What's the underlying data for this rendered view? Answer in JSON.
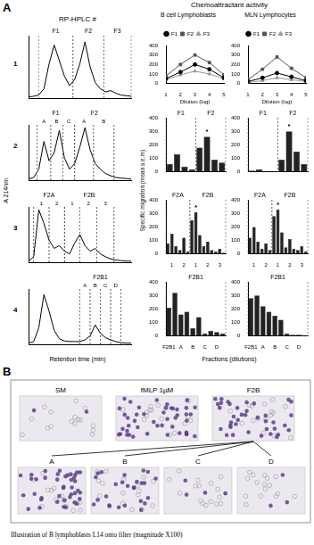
{
  "figure": {
    "panel_a": "A",
    "hplc_head": "RP-HPLC #",
    "activity_head": "Chemoattractant activity",
    "bcell_head": "B cell Lymphoblasts",
    "mln_head": "MLN Lymphocytes",
    "row_labels": [
      "1",
      "2",
      "3",
      "4"
    ],
    "y_title_left": "A 214nm",
    "y_title_mid": "Specific migration (mean s.e.m)",
    "x_title_left": "Retention time (min)",
    "x_title_right": "Fractions (dilutions)"
  },
  "chart_data": [
    {
      "type": "line",
      "x": [
        0,
        3,
        6,
        9,
        12,
        15,
        18,
        21,
        24,
        27,
        30,
        33,
        36,
        39,
        42,
        45,
        48,
        51,
        54,
        57,
        60
      ],
      "values": [
        0.02,
        0.03,
        0.05,
        0.15,
        0.55,
        0.85,
        0.6,
        0.35,
        0.2,
        0.3,
        0.55,
        0.9,
        0.5,
        0.25,
        0.15,
        0.1,
        0.12,
        0.08,
        0.05,
        0.04,
        0.03
      ],
      "color": "#000000",
      "xlim": [
        0,
        60
      ],
      "ylim": [
        0,
        1
      ],
      "tick_labels": false,
      "annotations": [
        {
          "text": "F1",
          "from": 6,
          "to": 26
        },
        {
          "text": "F2",
          "from": 26,
          "to": 44
        },
        {
          "text": "F3",
          "from": 44,
          "to": 60
        }
      ]
    },
    {
      "type": "line",
      "xlabel": "Dilution (log)",
      "x": [
        1,
        2,
        3,
        4,
        5
      ],
      "xlim": [
        1,
        5
      ],
      "xticks": [
        1,
        2,
        3,
        4,
        5
      ],
      "ylim": [
        0,
        400
      ],
      "yticks": [
        0,
        100,
        200,
        300,
        400
      ],
      "legend": "top",
      "series": [
        {
          "name": "F1",
          "color": "#000000",
          "marker": "circle",
          "values": [
            50,
            120,
            200,
            150,
            60
          ]
        },
        {
          "name": "F2",
          "color": "#555555",
          "marker": "square",
          "values": [
            80,
            200,
            300,
            220,
            90
          ]
        },
        {
          "name": "F3",
          "color": "#999999",
          "marker": "triangle",
          "values": [
            40,
            90,
            130,
            100,
            50
          ]
        }
      ]
    },
    {
      "type": "line",
      "xlabel": "Dilution (log)",
      "x": [
        1,
        2,
        3,
        4,
        5
      ],
      "xlim": [
        1,
        5
      ],
      "xticks": [
        1,
        2,
        3,
        4,
        5
      ],
      "ylim": [
        0,
        400
      ],
      "yticks": [
        0,
        100,
        200,
        300,
        400
      ],
      "legend": "top",
      "series": [
        {
          "name": "F1",
          "color": "#000000",
          "marker": "circle",
          "values": [
            20,
            60,
            110,
            70,
            30
          ]
        },
        {
          "name": "F2",
          "color": "#555555",
          "marker": "square",
          "values": [
            40,
            150,
            280,
            160,
            60
          ]
        },
        {
          "name": "F3",
          "color": "#999999",
          "marker": "triangle",
          "values": [
            10,
            30,
            60,
            40,
            20
          ]
        }
      ]
    },
    {
      "type": "line",
      "x": [
        0,
        3,
        6,
        9,
        12,
        15,
        18,
        21,
        24,
        27,
        30,
        33,
        36,
        39,
        42,
        45,
        48,
        51,
        54,
        57,
        60
      ],
      "values": [
        0.02,
        0.05,
        0.2,
        0.7,
        0.35,
        0.5,
        0.9,
        0.4,
        0.2,
        0.3,
        0.6,
        0.95,
        0.55,
        0.3,
        0.2,
        0.12,
        0.08,
        0.05,
        0.04,
        0.03,
        0.02
      ],
      "color": "#000000",
      "xlim": [
        0,
        60
      ],
      "ylim": [
        0,
        1
      ],
      "tick_labels": false,
      "annotations": [
        {
          "text": "F1",
          "from": 5,
          "to": 27,
          "sub": [
            {
              "text": "A",
              "from": 5,
              "to": 13
            },
            {
              "text": "B",
              "from": 13,
              "to": 20
            },
            {
              "text": "C",
              "from": 20,
              "to": 27
            }
          ]
        },
        {
          "text": "F2",
          "from": 27,
          "to": 50,
          "sub": [
            {
              "text": "A",
              "from": 27,
              "to": 38
            },
            {
              "text": "B",
              "from": 38,
              "to": 50
            }
          ]
        }
      ]
    },
    {
      "type": "bar",
      "categories": [
        null,
        null,
        null,
        null,
        null,
        null,
        null,
        null
      ],
      "values": [
        60,
        130,
        40,
        20,
        180,
        260,
        90,
        70
      ],
      "color": "#222222",
      "ylim": [
        0,
        400
      ],
      "yticks": [
        0,
        100,
        200,
        300,
        400
      ],
      "annotations": [
        {
          "text": "F1",
          "from": 0,
          "to": 3
        },
        {
          "text": "F2",
          "from": 4,
          "to": 7
        },
        {
          "text": "*",
          "at": 5
        }
      ]
    },
    {
      "type": "bar",
      "categories": [
        null,
        null,
        null,
        null,
        null,
        null,
        null,
        null
      ],
      "values": [
        10,
        20,
        5,
        0,
        90,
        300,
        150,
        60
      ],
      "color": "#222222",
      "ylim": [
        0,
        400
      ],
      "yticks": [
        0,
        100,
        200,
        300,
        400
      ],
      "annotations": [
        {
          "text": "F1",
          "from": 0,
          "to": 3
        },
        {
          "text": "F2",
          "from": 4,
          "to": 7
        },
        {
          "text": "*",
          "at": 5
        }
      ]
    },
    {
      "type": "line",
      "x": [
        0,
        3,
        6,
        9,
        12,
        15,
        18,
        21,
        24,
        27,
        30,
        33,
        36,
        39,
        42,
        45,
        48,
        51,
        54,
        57,
        60
      ],
      "values": [
        0.02,
        0.1,
        0.95,
        0.7,
        0.4,
        0.25,
        0.3,
        0.2,
        0.15,
        0.35,
        0.5,
        0.3,
        0.2,
        0.25,
        0.15,
        0.1,
        0.06,
        0.04,
        0.03,
        0.02,
        0.02
      ],
      "color": "#000000",
      "xlim": [
        0,
        60
      ],
      "ylim": [
        0,
        1
      ],
      "tick_labels": false,
      "annotations": [
        {
          "text": "F2A",
          "from": 3,
          "to": 21,
          "sub": [
            {
              "text": "1",
              "from": 3,
              "to": 12
            },
            {
              "text": "2",
              "from": 12,
              "to": 21
            }
          ]
        },
        {
          "text": "F2B",
          "from": 21,
          "to": 50,
          "sub": [
            {
              "text": "1",
              "from": 21,
              "to": 30
            },
            {
              "text": "2",
              "from": 30,
              "to": 40
            },
            {
              "text": "3",
              "from": 40,
              "to": 50
            }
          ]
        }
      ]
    },
    {
      "type": "bar",
      "categories": [
        null,
        "1",
        null,
        null,
        "2",
        null,
        null,
        "1",
        null,
        null,
        "2",
        null,
        null,
        "3",
        null
      ],
      "values": [
        80,
        150,
        60,
        30,
        120,
        20,
        250,
        310,
        140,
        60,
        90,
        30,
        20,
        40,
        10
      ],
      "color": "#222222",
      "ylim": [
        0,
        400
      ],
      "yticks": [
        0,
        100,
        200,
        300,
        400
      ],
      "annotations": [
        {
          "text": "F2A",
          "from": 0,
          "to": 5
        },
        {
          "text": "F2B",
          "from": 6,
          "to": 14
        },
        {
          "text": "*",
          "at": 7
        }
      ]
    },
    {
      "type": "bar",
      "categories": [
        null,
        "1",
        null,
        null,
        "2",
        null,
        null,
        "1",
        null,
        null,
        "2",
        null,
        null,
        "3",
        null
      ],
      "values": [
        120,
        200,
        90,
        40,
        80,
        30,
        280,
        330,
        160,
        50,
        110,
        40,
        30,
        60,
        20
      ],
      "color": "#222222",
      "ylim": [
        0,
        400
      ],
      "yticks": [
        0,
        100,
        200,
        300,
        400
      ],
      "annotations": [
        {
          "text": "F2A",
          "from": 0,
          "to": 5
        },
        {
          "text": "F2B",
          "from": 6,
          "to": 14
        },
        {
          "text": "*",
          "at": 7
        }
      ]
    },
    {
      "type": "line",
      "x": [
        0,
        3,
        6,
        9,
        12,
        15,
        18,
        21,
        24,
        27,
        30,
        33,
        36,
        39,
        42,
        45,
        48,
        51,
        54,
        57,
        60
      ],
      "values": [
        0.02,
        0.05,
        0.3,
        0.9,
        0.6,
        0.25,
        0.1,
        0.06,
        0.05,
        0.05,
        0.05,
        0.08,
        0.15,
        0.35,
        0.2,
        0.12,
        0.08,
        0.05,
        0.03,
        0.02,
        0.02
      ],
      "color": "#000000",
      "xlim": [
        0,
        60
      ],
      "ylim": [
        0,
        1
      ],
      "tick_labels": false,
      "annotations": [
        {
          "text": "F2B1",
          "from": 30,
          "to": 54,
          "sub": [
            {
              "text": "A",
              "from": 30,
              "to": 36
            },
            {
              "text": "B",
              "from": 36,
              "to": 42
            },
            {
              "text": "C",
              "from": 42,
              "to": 48
            },
            {
              "text": "D",
              "from": 48,
              "to": 54
            }
          ]
        }
      ]
    },
    {
      "type": "bar",
      "categories": [
        "F2B1",
        null,
        "A",
        null,
        "B",
        null,
        "C",
        null,
        "D",
        null
      ],
      "values": [
        210,
        320,
        160,
        180,
        60,
        140,
        20,
        40,
        30,
        20
      ],
      "color": "#222222",
      "ylim": [
        0,
        400
      ],
      "yticks": [
        0,
        100,
        200,
        300,
        400
      ],
      "annotations": [
        {
          "text": "F2B1",
          "from": 0,
          "to": 9
        }
      ]
    },
    {
      "type": "bar",
      "categories": [
        "F2B1",
        null,
        "A",
        null,
        "B",
        null,
        "C",
        null,
        "D",
        null
      ],
      "values": [
        280,
        300,
        220,
        180,
        150,
        120,
        20,
        10,
        10,
        5
      ],
      "color": "#222222",
      "ylim": [
        0,
        400
      ],
      "yticks": [
        0,
        100,
        200,
        300,
        400
      ],
      "annotations": [
        {
          "text": "F2B1",
          "from": 0,
          "to": 9
        }
      ]
    }
  ],
  "panel_b": {
    "label": "B",
    "images_top": [
      "SM",
      "fMLP 1µM",
      "F2B"
    ],
    "images_bottom": [
      "A",
      "B",
      "C",
      "D"
    ],
    "caption": "Illustration of B lymphoblasts L14 onto filter (magnitude X100)"
  }
}
